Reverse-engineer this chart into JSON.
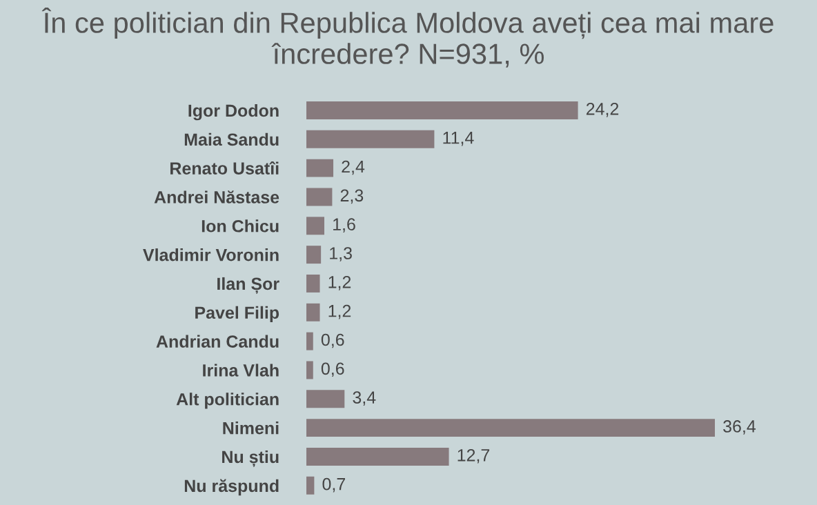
{
  "chart_data": {
    "type": "bar",
    "orientation": "horizontal",
    "title": "În ce politician din Republica Moldova aveți cea mai mare încredere? N=931, %",
    "categories": [
      "Igor Dodon",
      "Maia Sandu",
      "Renato Usatîi",
      "Andrei Năstase",
      "Ion Chicu",
      "Vladimir Voronin",
      "Ilan Șor",
      "Pavel Filip",
      "Andrian Candu",
      "Irina Vlah",
      "Alt politician",
      "Nimeni",
      "Nu știu",
      "Nu răspund"
    ],
    "values": [
      24.2,
      11.4,
      2.4,
      2.3,
      1.6,
      1.3,
      1.2,
      1.2,
      0.6,
      0.6,
      3.4,
      36.4,
      12.7,
      0.7
    ],
    "value_labels": [
      "24,2",
      "11,4",
      "2,4",
      "2,3",
      "1,6",
      "1,3",
      "1,2",
      "1,2",
      "0,6",
      "0,6",
      "3,4",
      "36,4",
      "12,7",
      "0,7"
    ],
    "color": "#877a7d",
    "grid": false,
    "legend": false
  }
}
